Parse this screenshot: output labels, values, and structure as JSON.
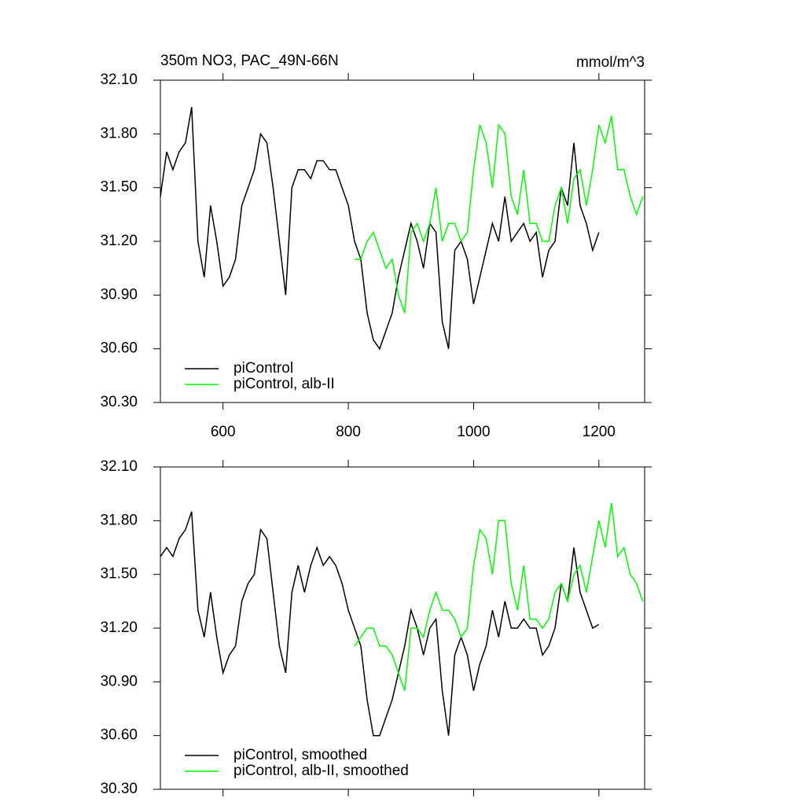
{
  "chart_data": [
    {
      "type": "line",
      "title": "350m NO3, PAC_49N-66N",
      "units": "mmol/m^3",
      "xlim": [
        500,
        1273
      ],
      "xticks": [
        600,
        800,
        1000,
        1200
      ],
      "ylim": [
        30.3,
        32.1
      ],
      "yticks": [
        {
          "value": 30.3,
          "label": "30.30"
        },
        {
          "value": 30.6,
          "label": "30.60"
        },
        {
          "value": 30.9,
          "label": "30.90"
        },
        {
          "value": 31.2,
          "label": "31.20"
        },
        {
          "value": 31.5,
          "label": "31.50"
        },
        {
          "value": 31.8,
          "label": "31.80"
        },
        {
          "value": 32.1,
          "label": "32.10"
        }
      ],
      "series": [
        {
          "name": "piControl",
          "color": "#000000",
          "x": [
            500,
            510,
            520,
            530,
            540,
            550,
            560,
            570,
            580,
            590,
            600,
            610,
            620,
            630,
            640,
            650,
            660,
            670,
            680,
            690,
            700,
            710,
            720,
            730,
            740,
            750,
            760,
            770,
            780,
            790,
            800,
            810,
            820,
            830,
            840,
            850,
            860,
            870,
            880,
            890,
            900,
            910,
            920,
            930,
            940,
            950,
            960,
            970,
            980,
            990,
            1000,
            1010,
            1020,
            1030,
            1040,
            1050,
            1060,
            1070,
            1080,
            1090,
            1100,
            1110,
            1120,
            1130,
            1140,
            1150,
            1160,
            1170,
            1180,
            1190,
            1200
          ],
          "values": [
            31.45,
            31.7,
            31.6,
            31.7,
            31.75,
            31.95,
            31.2,
            31.0,
            31.4,
            31.2,
            30.95,
            31.0,
            31.1,
            31.4,
            31.5,
            31.6,
            31.8,
            31.75,
            31.5,
            31.2,
            30.9,
            31.5,
            31.6,
            31.6,
            31.55,
            31.65,
            31.65,
            31.6,
            31.6,
            31.5,
            31.4,
            31.2,
            31.1,
            30.8,
            30.65,
            30.6,
            30.7,
            30.8,
            31.0,
            31.15,
            31.3,
            31.2,
            31.05,
            31.3,
            31.25,
            30.75,
            30.6,
            31.15,
            31.2,
            31.1,
            30.85,
            31.0,
            31.15,
            31.3,
            31.2,
            31.45,
            31.2,
            31.25,
            31.3,
            31.2,
            31.25,
            31.0,
            31.15,
            31.2,
            31.5,
            31.4,
            31.75,
            31.4,
            31.3,
            31.15,
            31.25
          ]
        },
        {
          "name": "piControl, alb-II",
          "color": "#00ff00",
          "x": [
            810,
            820,
            830,
            840,
            850,
            860,
            870,
            880,
            890,
            900,
            910,
            920,
            930,
            940,
            950,
            960,
            970,
            980,
            990,
            1000,
            1010,
            1020,
            1030,
            1040,
            1050,
            1060,
            1070,
            1080,
            1090,
            1100,
            1110,
            1120,
            1130,
            1140,
            1150,
            1160,
            1170,
            1180,
            1190,
            1200,
            1210,
            1220,
            1230,
            1240,
            1250,
            1260,
            1270
          ],
          "values": [
            31.1,
            31.1,
            31.2,
            31.25,
            31.15,
            31.05,
            31.1,
            30.9,
            30.8,
            31.25,
            31.3,
            31.2,
            31.3,
            31.5,
            31.2,
            31.3,
            31.3,
            31.2,
            31.25,
            31.6,
            31.85,
            31.75,
            31.5,
            31.85,
            31.8,
            31.45,
            31.35,
            31.6,
            31.3,
            31.3,
            31.2,
            31.2,
            31.4,
            31.5,
            31.3,
            31.55,
            31.6,
            31.4,
            31.6,
            31.85,
            31.75,
            31.9,
            31.6,
            31.6,
            31.45,
            31.35,
            31.45
          ]
        }
      ]
    },
    {
      "type": "line",
      "xlim": [
        500,
        1273
      ],
      "ylim": [
        30.3,
        32.1
      ],
      "yticks": [
        {
          "value": 30.3,
          "label": "30.30"
        },
        {
          "value": 30.6,
          "label": "30.60"
        },
        {
          "value": 30.9,
          "label": "30.90"
        },
        {
          "value": 31.2,
          "label": "31.20"
        },
        {
          "value": 31.5,
          "label": "31.50"
        },
        {
          "value": 31.8,
          "label": "31.80"
        },
        {
          "value": 32.1,
          "label": "32.10"
        }
      ],
      "series": [
        {
          "name": "piControl, smoothed",
          "color": "#000000",
          "x": [
            500,
            510,
            520,
            530,
            540,
            550,
            560,
            570,
            580,
            590,
            600,
            610,
            620,
            630,
            640,
            650,
            660,
            670,
            680,
            690,
            700,
            710,
            720,
            730,
            740,
            750,
            760,
            770,
            780,
            790,
            800,
            810,
            820,
            830,
            840,
            850,
            860,
            870,
            880,
            890,
            900,
            910,
            920,
            930,
            940,
            950,
            960,
            970,
            980,
            990,
            1000,
            1010,
            1020,
            1030,
            1040,
            1050,
            1060,
            1070,
            1080,
            1090,
            1100,
            1110,
            1120,
            1130,
            1140,
            1150,
            1160,
            1170,
            1180,
            1190,
            1200
          ],
          "values": [
            31.6,
            31.65,
            31.6,
            31.7,
            31.75,
            31.85,
            31.3,
            31.15,
            31.4,
            31.15,
            30.95,
            31.05,
            31.1,
            31.35,
            31.45,
            31.5,
            31.75,
            31.7,
            31.4,
            31.1,
            30.95,
            31.4,
            31.55,
            31.4,
            31.55,
            31.65,
            31.55,
            31.6,
            31.55,
            31.45,
            31.3,
            31.2,
            31.1,
            30.8,
            30.6,
            30.6,
            30.7,
            30.8,
            30.95,
            31.1,
            31.3,
            31.2,
            31.05,
            31.2,
            31.25,
            30.85,
            30.6,
            31.05,
            31.15,
            31.05,
            30.85,
            31.0,
            31.1,
            31.3,
            31.15,
            31.35,
            31.2,
            31.2,
            31.25,
            31.2,
            31.2,
            31.05,
            31.1,
            31.2,
            31.45,
            31.35,
            31.65,
            31.4,
            31.3,
            31.2,
            31.22
          ]
        },
        {
          "name": "piControl, alb-II, smoothed",
          "color": "#00ff00",
          "x": [
            810,
            820,
            830,
            840,
            850,
            860,
            870,
            880,
            890,
            900,
            910,
            920,
            930,
            940,
            950,
            960,
            970,
            980,
            990,
            1000,
            1010,
            1020,
            1030,
            1040,
            1050,
            1060,
            1070,
            1080,
            1090,
            1100,
            1110,
            1120,
            1130,
            1140,
            1150,
            1160,
            1170,
            1180,
            1190,
            1200,
            1210,
            1220,
            1230,
            1240,
            1250,
            1260,
            1270
          ],
          "values": [
            31.1,
            31.15,
            31.2,
            31.2,
            31.1,
            31.1,
            31.05,
            30.95,
            30.85,
            31.2,
            31.2,
            31.15,
            31.3,
            31.4,
            31.3,
            31.3,
            31.25,
            31.15,
            31.2,
            31.55,
            31.75,
            31.7,
            31.5,
            31.8,
            31.8,
            31.45,
            31.3,
            31.55,
            31.25,
            31.25,
            31.2,
            31.25,
            31.4,
            31.45,
            31.35,
            31.5,
            31.55,
            31.4,
            31.6,
            31.8,
            31.65,
            31.9,
            31.6,
            31.65,
            31.5,
            31.45,
            31.35
          ]
        }
      ]
    }
  ]
}
